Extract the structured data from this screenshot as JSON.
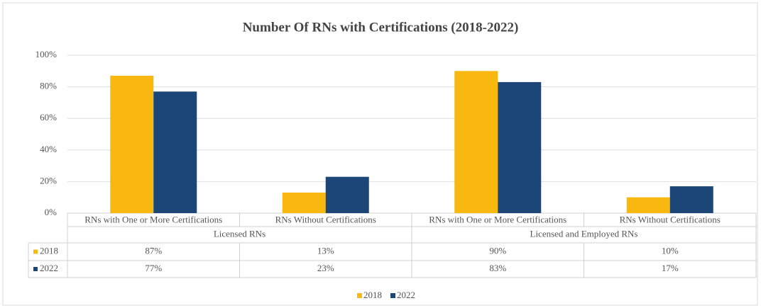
{
  "chart_data": {
    "type": "bar",
    "title": "Number Of RNs with Certifications (2018-2022)",
    "groups": [
      "Licensed RNs",
      "Licensed and Employed RNs"
    ],
    "categories": [
      "RNs with One or More Certifications",
      "RNs Without Certifications",
      "RNs with One or More Certifications",
      "RNs Without Certifications"
    ],
    "series": [
      {
        "name": "2018",
        "color": "#f8b810",
        "values": [
          87,
          13,
          90,
          10
        ],
        "value_labels": [
          "87%",
          "13%",
          "90%",
          "10%"
        ]
      },
      {
        "name": "2022",
        "color": "#1c4677",
        "values": [
          77,
          23,
          83,
          17
        ],
        "value_labels": [
          "77%",
          "23%",
          "83%",
          "17%"
        ]
      }
    ],
    "ylim": [
      0,
      100
    ],
    "yticks": [
      {
        "value": 0,
        "label": "0%"
      },
      {
        "value": 20,
        "label": "20%"
      },
      {
        "value": 40,
        "label": "40%"
      },
      {
        "value": 60,
        "label": "60%"
      },
      {
        "value": 80,
        "label": "80%"
      },
      {
        "value": 100,
        "label": "100%"
      }
    ],
    "grid": true
  }
}
